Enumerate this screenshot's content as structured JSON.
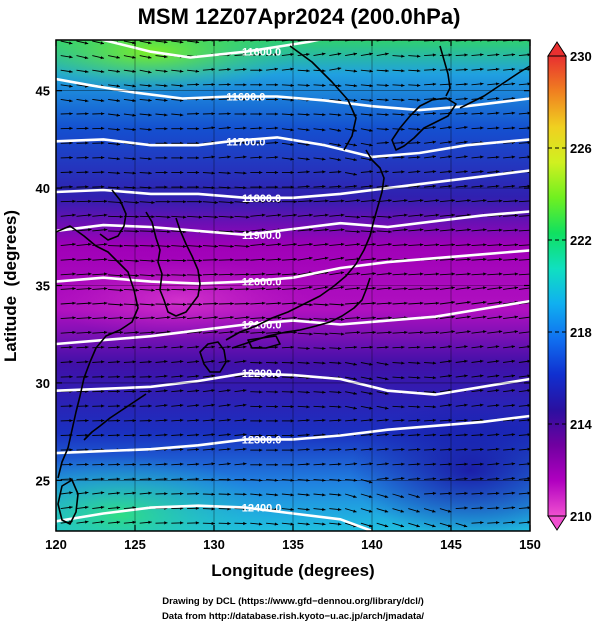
{
  "chart_data": {
    "type": "heatmap",
    "title": "MSM 12Z07Apr2024 (200.0hPa)",
    "xlabel": "Longitude (degrees)",
    "ylabel": "Latitude  (degrees)",
    "xlim": [
      120,
      150
    ],
    "ylim": [
      22.4,
      47.6
    ],
    "x_ticks": [
      120,
      125,
      130,
      135,
      140,
      145,
      150
    ],
    "y_ticks": [
      25,
      30,
      35,
      40,
      45
    ],
    "colorbar": {
      "range": [
        210,
        230
      ],
      "ticks": [
        210,
        214,
        218,
        222,
        226,
        230
      ],
      "colors": [
        "#f050d0",
        "#b000c0",
        "#7000a0",
        "#2a10a0",
        "#1030d0",
        "#1070f0",
        "#10b0f0",
        "#10e0c0",
        "#10e060",
        "#70f020",
        "#d0f020",
        "#f0d020",
        "#f08020",
        "#e83030"
      ]
    },
    "contours": {
      "color": "#ffffff",
      "lines": [
        {
          "label": "11600.0",
          "points": [
            [
              120,
              48.3
            ],
            [
              123,
              47.6
            ],
            [
              126,
              47.0
            ],
            [
              128.5,
              46.7
            ],
            [
              132,
              47.0
            ],
            [
              136,
              47.5
            ],
            [
              140,
              48.2
            ]
          ]
        },
        {
          "label": "11600.0",
          "points": [
            [
              120,
              45.6
            ],
            [
              122,
              45.3
            ],
            [
              125,
              44.9
            ],
            [
              128,
              44.6
            ],
            [
              131,
              44.7
            ],
            [
              134,
              44.7
            ],
            [
              137,
              44.5
            ],
            [
              140,
              44.2
            ],
            [
              143,
              44.0
            ],
            [
              146,
              44.2
            ],
            [
              150,
              44.6
            ]
          ]
        },
        {
          "label": "11700.0",
          "points": [
            [
              120,
              42.4
            ],
            [
              123,
              42.5
            ],
            [
              126,
              42.2
            ],
            [
              129,
              42.2
            ],
            [
              131,
              42.4
            ],
            [
              134,
              42.6
            ],
            [
              137,
              42.2
            ],
            [
              140,
              41.6
            ],
            [
              143,
              41.8
            ],
            [
              146,
              42.2
            ],
            [
              150,
              42.5
            ]
          ]
        },
        {
          "label": "11800.0",
          "points": [
            [
              120,
              39.8
            ],
            [
              123,
              39.9
            ],
            [
              126,
              39.7
            ],
            [
              129,
              39.7
            ],
            [
              132,
              39.5
            ],
            [
              135,
              39.5
            ],
            [
              138,
              39.7
            ],
            [
              141,
              40.0
            ],
            [
              144,
              40.3
            ],
            [
              147,
              40.6
            ],
            [
              150,
              40.9
            ]
          ]
        },
        {
          "label": "11900.0",
          "points": [
            [
              120,
              37.8
            ],
            [
              123,
              38.1
            ],
            [
              126,
              38.0
            ],
            [
              129,
              37.8
            ],
            [
              132,
              37.6
            ],
            [
              135,
              37.9
            ],
            [
              138,
              38.2
            ],
            [
              141,
              38.0
            ],
            [
              144,
              38.3
            ],
            [
              147,
              38.6
            ],
            [
              150,
              38.8
            ]
          ]
        },
        {
          "label": "12000.0",
          "points": [
            [
              120,
              35.2
            ],
            [
              123,
              35.4
            ],
            [
              126,
              35.2
            ],
            [
              129,
              35.1
            ],
            [
              132,
              35.2
            ],
            [
              135,
              35.4
            ],
            [
              138,
              35.9
            ],
            [
              141,
              36.2
            ],
            [
              144,
              36.4
            ],
            [
              147,
              36.6
            ],
            [
              150,
              36.8
            ]
          ]
        },
        {
          "label": "12100.0",
          "points": [
            [
              120,
              32.0
            ],
            [
              123,
              32.2
            ],
            [
              126,
              32.4
            ],
            [
              129,
              32.7
            ],
            [
              132,
              33.0
            ],
            [
              135,
              33.2
            ],
            [
              138,
              33.0
            ],
            [
              141,
              33.2
            ],
            [
              144,
              33.4
            ],
            [
              147,
              33.8
            ],
            [
              150,
              34.2
            ]
          ]
        },
        {
          "label": "12200.0",
          "points": [
            [
              120,
              29.6
            ],
            [
              123,
              29.7
            ],
            [
              126,
              29.8
            ],
            [
              129,
              30.1
            ],
            [
              132,
              30.5
            ],
            [
              135,
              30.4
            ],
            [
              138,
              30.2
            ],
            [
              141,
              29.6
            ],
            [
              144,
              29.4
            ],
            [
              147,
              29.8
            ],
            [
              150,
              30.2
            ]
          ]
        },
        {
          "label": "12300.0",
          "points": [
            [
              120,
              26.4
            ],
            [
              123,
              26.5
            ],
            [
              126,
              26.6
            ],
            [
              129,
              26.8
            ],
            [
              132,
              27.1
            ],
            [
              135,
              27.1
            ],
            [
              138,
              27.3
            ],
            [
              141,
              27.6
            ],
            [
              144,
              27.8
            ],
            [
              147,
              28.0
            ],
            [
              150,
              28.3
            ]
          ]
        },
        {
          "label": "12400.0",
          "points": [
            [
              120,
              22.9
            ],
            [
              123,
              23.3
            ],
            [
              126,
              23.6
            ],
            [
              129,
              23.7
            ],
            [
              132,
              23.6
            ],
            [
              135,
              23.3
            ],
            [
              138,
              23.0
            ],
            [
              140,
              22.4
            ]
          ]
        }
      ]
    },
    "wind_vectors": {
      "grid_lon_step": 1.0,
      "grid_lat_step": 0.75,
      "color": "#000000"
    }
  },
  "credits": {
    "line1": "Drawing by DCL (https://www.gfd−dennou.org/library/dcl/)",
    "line2": "Data from http://database.rish.kyoto−u.ac.jp/arch/jmadata/"
  }
}
